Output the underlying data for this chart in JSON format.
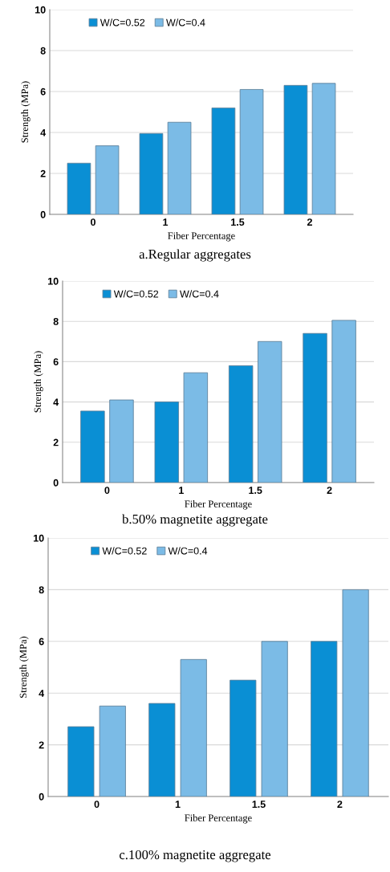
{
  "chart_data": [
    {
      "type": "bar",
      "xlabel": "Fiber Percentage",
      "ylabel": "Strength (MPa)",
      "categories": [
        "0",
        "1",
        "1.5",
        "2"
      ],
      "ylim": [
        0,
        10
      ],
      "yticks": [
        0,
        2,
        4,
        6,
        8,
        10
      ],
      "grid": "y",
      "legend": "top left",
      "series": [
        {
          "name": "W/C=0.52",
          "color": "#0a8fd4",
          "values": [
            2.5,
            3.95,
            5.2,
            6.3
          ]
        },
        {
          "name": "W/C=0.4",
          "color": "#7bbbe6",
          "values": [
            3.35,
            4.5,
            6.1,
            6.4
          ]
        }
      ],
      "annotations": [
        "a.Regular aggregates"
      ]
    },
    {
      "type": "bar",
      "xlabel": "Fiber Percentage",
      "ylabel": "Strength (MPa)",
      "categories": [
        "0",
        "1",
        "1.5",
        "2"
      ],
      "ylim": [
        0,
        10
      ],
      "yticks": [
        0,
        2,
        4,
        6,
        8,
        10
      ],
      "grid": "y",
      "legend": "top left",
      "series": [
        {
          "name": "W/C=0.52",
          "color": "#0a8fd4",
          "values": [
            3.55,
            4.0,
            5.8,
            7.4
          ]
        },
        {
          "name": "W/C=0.4",
          "color": "#7bbbe6",
          "values": [
            4.1,
            5.45,
            7.0,
            8.05
          ]
        }
      ],
      "annotations": [
        "b.50% magnetite aggregate"
      ]
    },
    {
      "type": "bar",
      "xlabel": "Fiber Percentage",
      "ylabel": "Strength (MPa)",
      "categories": [
        "0",
        "1",
        "1.5",
        "2"
      ],
      "ylim": [
        0,
        10
      ],
      "yticks": [
        0,
        2,
        4,
        6,
        8,
        10
      ],
      "grid": "y",
      "legend": "top left",
      "series": [
        {
          "name": "W/C=0.52",
          "color": "#0a8fd4",
          "values": [
            2.7,
            3.6,
            4.5,
            6.0
          ]
        },
        {
          "name": "W/C=0.4",
          "color": "#7bbbe6",
          "values": [
            3.5,
            5.3,
            6.0,
            8.0
          ]
        }
      ],
      "annotations": [
        "c.100% magnetite aggregate"
      ]
    }
  ]
}
